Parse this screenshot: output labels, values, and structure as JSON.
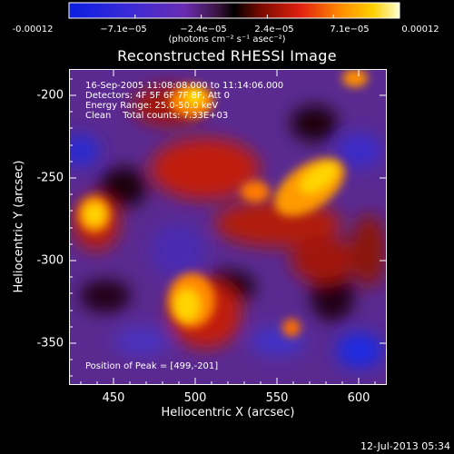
{
  "colorbar": {
    "ticks": [
      "-0.00012",
      "−7.1e−05",
      "−2.4e−05",
      "2.4e−05",
      "7.1e−05",
      "0.00012"
    ],
    "unit_label": "(photons cm⁻² s⁻¹ asec⁻²)"
  },
  "title": "Reconstructed RHESSI Image",
  "annotations": {
    "time_range": "16-Sep-2005 11:08:08.000 to 11:14:06.000",
    "detectors": "Detectors: 4F 5F 6F 7F 8F, Att 0",
    "energy": "Energy Range: 25.0-50.0 keV",
    "clean": "Clean    Total counts: 7.33E+03",
    "peak": "Position of Peak = [499,-201]"
  },
  "axes": {
    "xlabel": "Heliocentric X (arcsec)",
    "ylabel": "Heliocentric Y (arcsec)",
    "xticks": [
      "450",
      "500",
      "550",
      "600"
    ],
    "yticks": [
      "-200",
      "-250",
      "-300",
      "-350"
    ]
  },
  "timestamp": "12-Jul-2013 05:34"
}
